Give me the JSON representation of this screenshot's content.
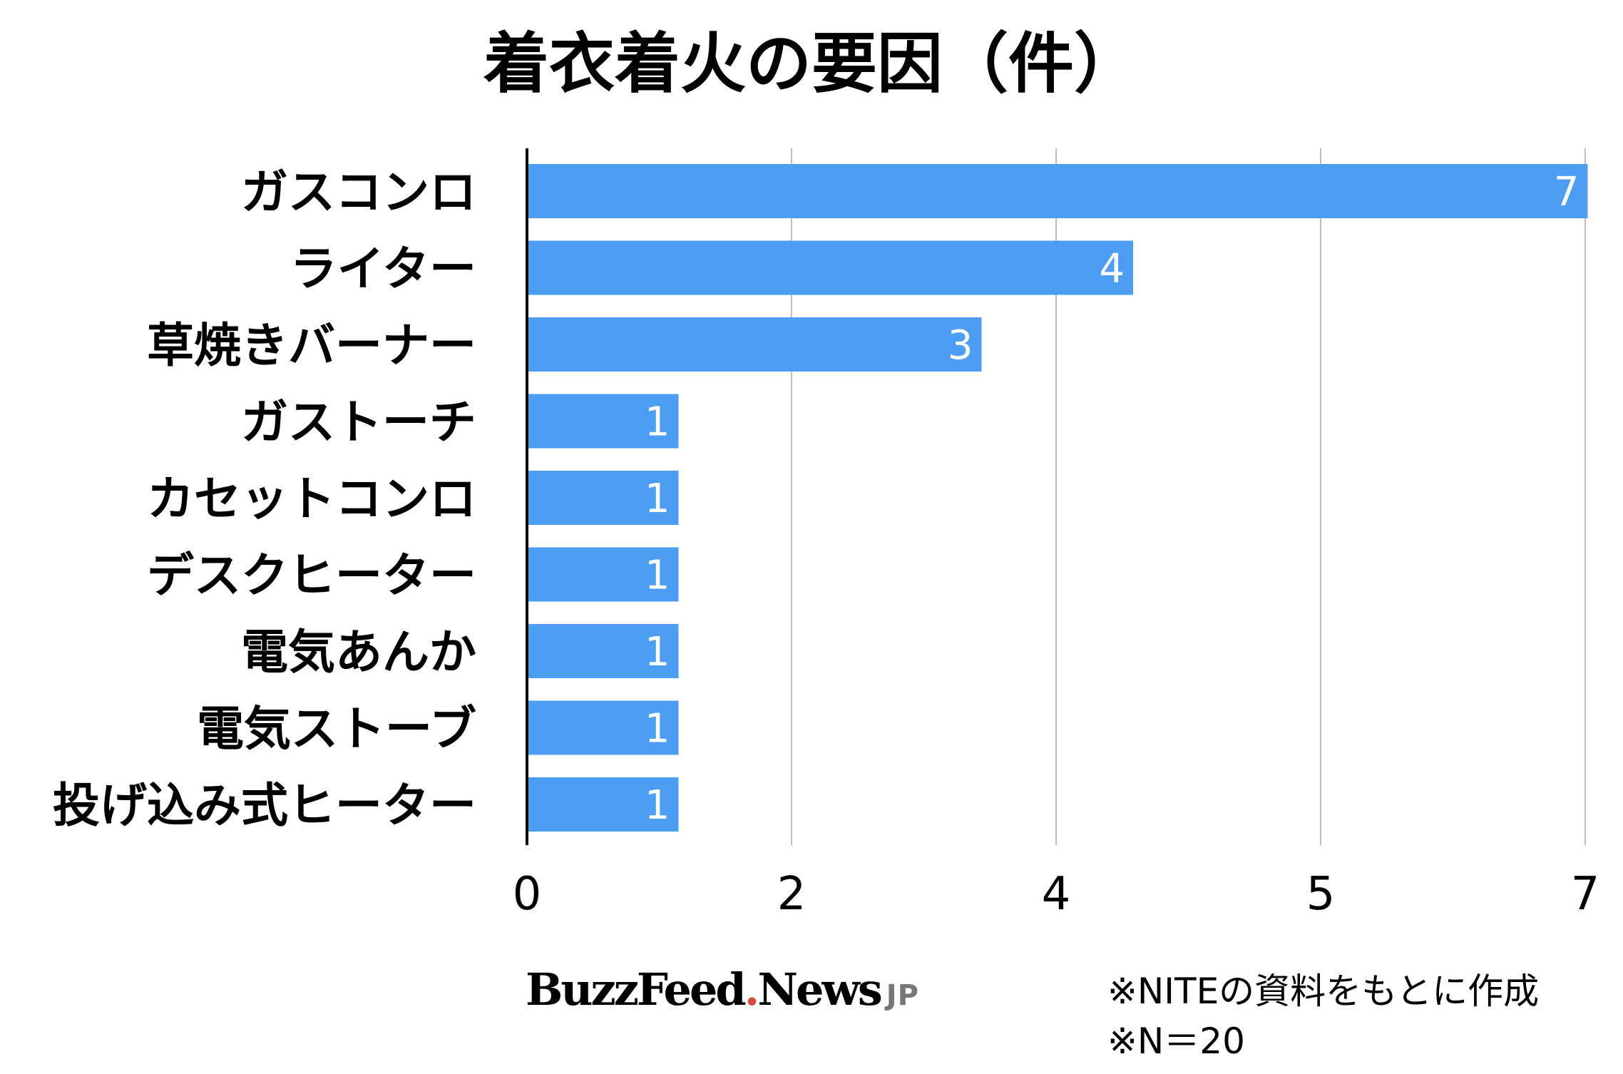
{
  "chart_data": {
    "type": "bar",
    "orientation": "horizontal",
    "title": "着衣着火の要因（件）",
    "categories": [
      "ガスコンロ",
      "ライター",
      "草焼きバーナー",
      "ガストーチ",
      "カセットコンロ",
      "デスクヒーター",
      "電気あんか",
      "電気ストーブ",
      "投げ込み式ヒーター"
    ],
    "values": [
      7,
      4,
      3,
      1,
      1,
      1,
      1,
      1,
      1
    ],
    "value_labels": [
      "7",
      "4",
      "3",
      "1",
      "1",
      "1",
      "1",
      "1",
      "1"
    ],
    "x_ticks": [
      "0",
      "2",
      "4",
      "5",
      "7"
    ],
    "grid": true,
    "bar_color": "#4c9ef5"
  },
  "footer": {
    "logo_buzz": "BuzzFeed",
    "logo_dot": ".",
    "logo_news": "News",
    "logo_jp": "JP",
    "note_source": "※NITEの資料をもとに作成",
    "note_n": "※N＝20"
  }
}
